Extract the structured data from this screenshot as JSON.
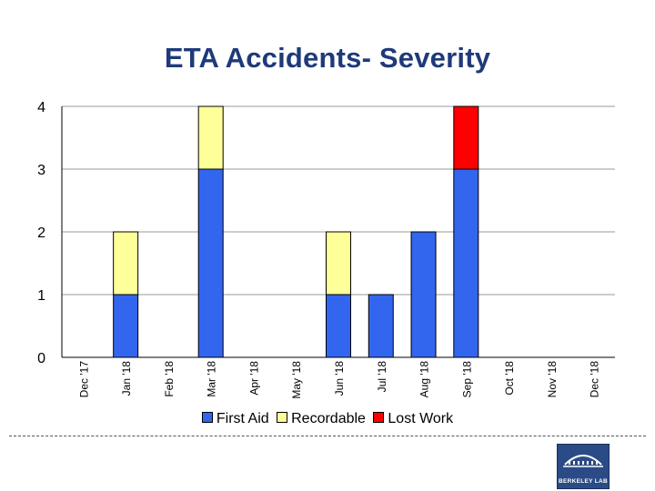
{
  "slide": {
    "title": "ETA Accidents- Severity",
    "logo_text": "BERKELEY LAB"
  },
  "chart_data": {
    "type": "bar",
    "stacked": true,
    "title": "",
    "xlabel": "",
    "ylabel": "",
    "ylim": [
      0,
      4
    ],
    "yticks": [
      0,
      1,
      2,
      3,
      4
    ],
    "grid": true,
    "legend_position": "bottom",
    "categories": [
      "Dec '17",
      "Jan '18",
      "Feb '18",
      "Mar '18",
      "Apr '18",
      "May '18",
      "Jun '18",
      "Jul '18",
      "Aug '18",
      "Sep '18",
      "Oct '18",
      "Nov '18",
      "Dec '18"
    ],
    "series": [
      {
        "name": "First Aid",
        "color": "#3366ee",
        "values": [
          0,
          1,
          0,
          3,
          0,
          0,
          1,
          1,
          2,
          3,
          0,
          0,
          0
        ]
      },
      {
        "name": "Recordable",
        "color": "#ffff99",
        "values": [
          0,
          1,
          0,
          1,
          0,
          0,
          1,
          0,
          0,
          0,
          0,
          0,
          0
        ]
      },
      {
        "name": "Lost Work",
        "color": "#ff0000",
        "values": [
          0,
          0,
          0,
          0,
          0,
          0,
          0,
          0,
          0,
          1,
          0,
          0,
          0
        ]
      }
    ]
  }
}
